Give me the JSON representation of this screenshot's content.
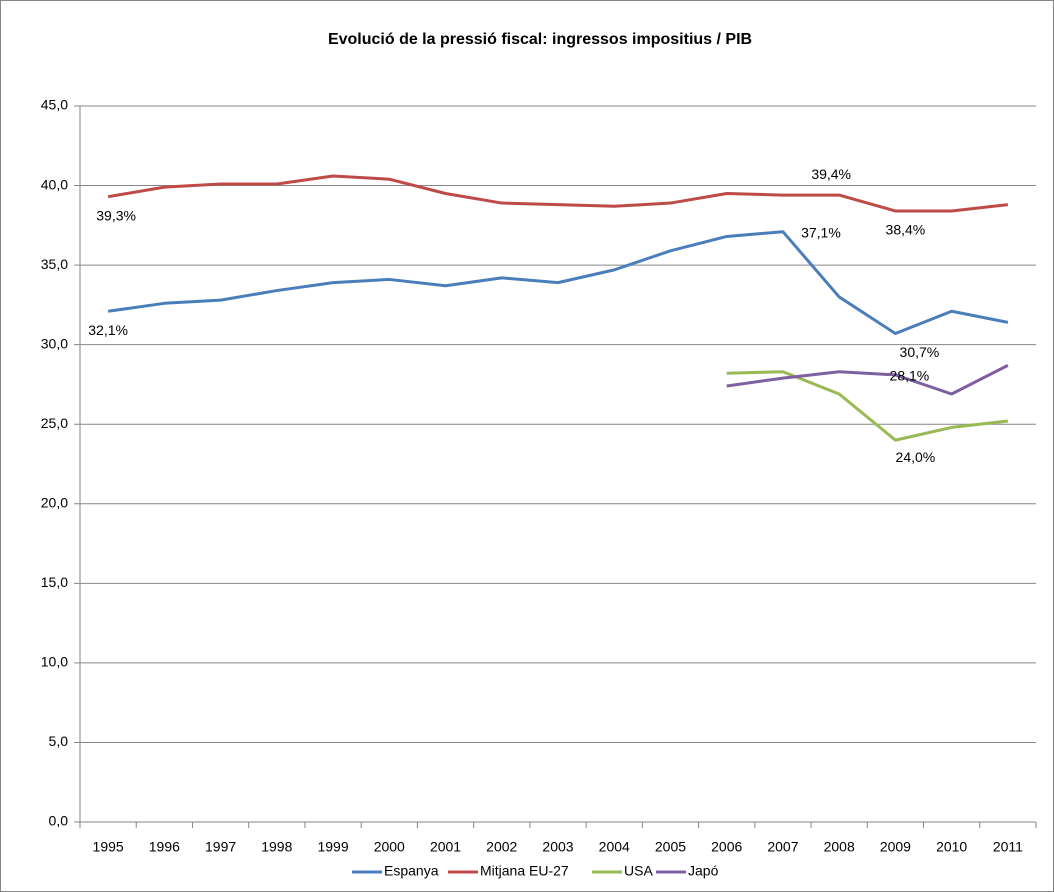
{
  "chart_data": {
    "type": "line",
    "title": "Evolució de la pressió fiscal: ingressos impositius / PIB",
    "categories": [
      "1995",
      "1996",
      "1997",
      "1998",
      "1999",
      "2000",
      "2001",
      "2002",
      "2003",
      "2004",
      "2005",
      "2006",
      "2007",
      "2008",
      "2009",
      "2010",
      "2011"
    ],
    "series": [
      {
        "name": "Espanya",
        "color": "#4a7ebb",
        "values": [
          32.1,
          32.6,
          32.8,
          33.4,
          33.9,
          34.1,
          33.7,
          34.2,
          33.9,
          34.7,
          35.9,
          36.8,
          37.1,
          33.0,
          30.7,
          32.1,
          31.4
        ],
        "value_labels": [
          "32,1%",
          null,
          null,
          null,
          null,
          null,
          null,
          null,
          null,
          null,
          null,
          null,
          "37,1%",
          null,
          "30,7%",
          null,
          null
        ]
      },
      {
        "name": "Mitjana EU-27",
        "color": "#be4b48",
        "values": [
          39.3,
          39.9,
          40.1,
          40.1,
          40.6,
          40.4,
          39.5,
          38.9,
          38.8,
          38.7,
          38.9,
          39.5,
          39.4,
          39.4,
          38.4,
          38.4,
          38.8
        ],
        "value_labels": [
          "39,3%",
          null,
          null,
          null,
          null,
          null,
          null,
          null,
          null,
          null,
          null,
          null,
          null,
          "39,4%",
          "38,4%",
          null,
          null
        ]
      },
      {
        "name": "USA",
        "color": "#98b954",
        "values": [
          null,
          null,
          null,
          null,
          null,
          null,
          null,
          null,
          null,
          null,
          null,
          28.2,
          28.3,
          26.9,
          24.0,
          24.8,
          25.2
        ],
        "value_labels": [
          null,
          null,
          null,
          null,
          null,
          null,
          null,
          null,
          null,
          null,
          null,
          null,
          null,
          null,
          "24,0%",
          null,
          null
        ]
      },
      {
        "name": "Japó",
        "color": "#7d60a0",
        "values": [
          null,
          null,
          null,
          null,
          null,
          null,
          null,
          null,
          null,
          null,
          null,
          27.4,
          27.9,
          28.3,
          28.1,
          26.9,
          28.7
        ],
        "value_labels": [
          null,
          null,
          null,
          null,
          null,
          null,
          null,
          null,
          null,
          null,
          null,
          null,
          null,
          null,
          "28,1%",
          null,
          null
        ]
      }
    ],
    "ylim": [
      0,
      45
    ],
    "yticks": [
      {
        "value": 0,
        "label": "0,0"
      },
      {
        "value": 5,
        "label": "5,0"
      },
      {
        "value": 10,
        "label": "10,0"
      },
      {
        "value": 15,
        "label": "15,0"
      },
      {
        "value": 20,
        "label": "20,0"
      },
      {
        "value": 25,
        "label": "25,0"
      },
      {
        "value": 30,
        "label": "30,0"
      },
      {
        "value": 35,
        "label": "35,0"
      },
      {
        "value": 40,
        "label": "40,0"
      },
      {
        "value": 45,
        "label": "45,0"
      }
    ],
    "grid": true,
    "legend": "bottom"
  }
}
